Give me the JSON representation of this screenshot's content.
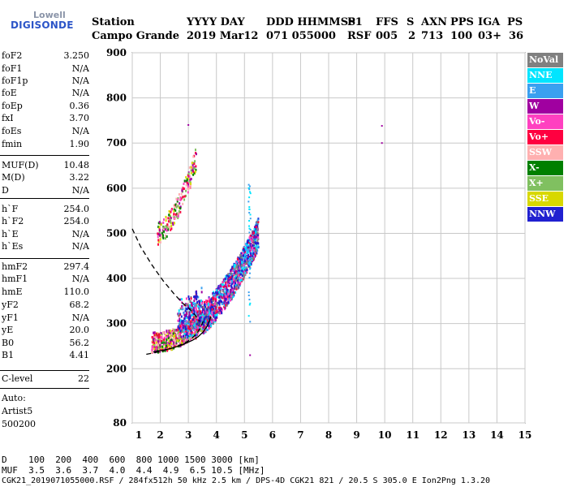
{
  "logo": {
    "line1": "Lowell",
    "line2": "DIGISONDE"
  },
  "header": {
    "station_label": "Station",
    "station_name": "Campo Grande",
    "date_label": "YYYY DAY",
    "date_value": "2019 Mar12",
    "time_label": "DDD HHMMSS",
    "time_value": "071 055000",
    "p1_label": "P1",
    "p1_value": "RSF",
    "ffs_label": "FFS",
    "ffs_value": "005",
    "s_label": "S",
    "s_value": "2",
    "axn_label": "AXN",
    "axn_value": "713",
    "pps_label": "PPS",
    "pps_value": "100",
    "iga_label": "IGA",
    "iga_value": "03+",
    "ps_label": "PS",
    "ps_value": "36"
  },
  "params": [
    {
      "key": "foF2",
      "value": "3.250"
    },
    {
      "key": "foF1",
      "value": "N/A"
    },
    {
      "key": "foF1p",
      "value": "N/A"
    },
    {
      "key": "foE",
      "value": "N/A"
    },
    {
      "key": "foEp",
      "value": "0.36"
    },
    {
      "key": "fxI",
      "value": "3.70"
    },
    {
      "key": "foEs",
      "value": "N/A"
    },
    {
      "key": "fmin",
      "value": "1.90"
    },
    {
      "key": "MUF(D)",
      "value": "10.48"
    },
    {
      "key": "M(D)",
      "value": "3.22"
    },
    {
      "key": "D",
      "value": "N/A"
    },
    {
      "key": "h`F",
      "value": "254.0"
    },
    {
      "key": "h`F2",
      "value": "254.0"
    },
    {
      "key": "h`E",
      "value": "N/A"
    },
    {
      "key": "h`Es",
      "value": "N/A"
    },
    {
      "key": "hmF2",
      "value": "297.4"
    },
    {
      "key": "hmF1",
      "value": "N/A"
    },
    {
      "key": "hmE",
      "value": "110.0"
    },
    {
      "key": "yF2",
      "value": "68.2"
    },
    {
      "key": "yF1",
      "value": "N/A"
    },
    {
      "key": "yE",
      "value": "20.0"
    },
    {
      "key": "B0",
      "value": "56.2"
    },
    {
      "key": "B1",
      "value": "4.41"
    },
    {
      "key": "C-level",
      "value": "22"
    }
  ],
  "auto": {
    "line1": "Auto:",
    "line2": "Artist5",
    "line3": "500200"
  },
  "legend": [
    {
      "label": "NoVal",
      "color": "#808080",
      "text_color": "#ffffff"
    },
    {
      "label": "NNE",
      "color": "#00e5ff",
      "text_color": "#ffffff"
    },
    {
      "label": "E",
      "color": "#3aa0f0",
      "text_color": "#ffffff"
    },
    {
      "label": "W",
      "color": "#a000a0",
      "text_color": "#ffffff"
    },
    {
      "label": "Vo-",
      "color": "#ff40c0",
      "text_color": "#ffffff"
    },
    {
      "label": "Vo+",
      "color": "#ff0040",
      "text_color": "#ffffff"
    },
    {
      "label": "SSW",
      "color": "#ffb0b0",
      "text_color": "#ffffff"
    },
    {
      "label": "X-",
      "color": "#008000",
      "text_color": "#ffffff"
    },
    {
      "label": "X+",
      "color": "#80c060",
      "text_color": "#ffffff"
    },
    {
      "label": "SSE",
      "color": "#d8d800",
      "text_color": "#ffffff"
    },
    {
      "label": "NNW",
      "color": "#2020d0",
      "text_color": "#ffffff"
    }
  ],
  "bottom": {
    "d_label": "D",
    "d_values": "100  200  400  600  800 1000 1500 3000 [km]",
    "muf_label": "MUF",
    "muf_values": "3.5  3.6  3.7  4.0  4.4  4.9  6.5 10.5 [MHz]",
    "footer": "CGK21_2019071055000.RSF / 284fx512h 50 kHz 2.5 km / DPS-4D CGK21 821 / 20.5 S 305.0 E Ion2Png 1.3.20"
  },
  "chart_data": {
    "type": "scatter",
    "xlim": [
      1,
      15
    ],
    "ylim": [
      80,
      900
    ],
    "x_ticks": [
      1,
      2,
      3,
      4,
      5,
      6,
      7,
      8,
      9,
      10,
      11,
      12,
      13,
      14,
      15
    ],
    "y_ticks": [
      80,
      200,
      300,
      400,
      500,
      600,
      700,
      800,
      900
    ],
    "grid": true,
    "legend_position": "right",
    "profile_curve": [
      [
        1.5,
        232
      ],
      [
        2.0,
        238
      ],
      [
        2.5,
        247
      ],
      [
        2.9,
        258
      ],
      [
        3.1,
        266
      ],
      [
        3.3,
        278
      ],
      [
        3.45,
        292
      ],
      [
        3.55,
        310
      ]
    ],
    "trace_curve": [
      [
        1.0,
        510
      ],
      [
        1.3,
        470
      ],
      [
        1.7,
        430
      ],
      [
        2.1,
        395
      ],
      [
        2.5,
        365
      ],
      [
        2.8,
        345
      ],
      [
        3.0,
        335
      ],
      [
        3.2,
        322
      ],
      [
        3.4,
        305
      ]
    ],
    "echo_clusters": [
      {
        "name": "o-trace lower",
        "x_range": [
          1.7,
          3.8
        ],
        "h_range": [
          245,
          340
        ],
        "mode": "o"
      },
      {
        "name": "x-trace",
        "x_range": [
          2.6,
          5.5
        ],
        "h_range": [
          280,
          520
        ],
        "mode": "x"
      },
      {
        "name": "second hop",
        "x_range": [
          1.9,
          3.3
        ],
        "h_range": [
          490,
          700
        ],
        "mode": "hop"
      },
      {
        "name": "isolated points",
        "points": [
          [
            9.9,
            738
          ],
          [
            9.9,
            700
          ],
          [
            5.2,
            230
          ],
          [
            3.0,
            740
          ]
        ]
      }
    ]
  }
}
